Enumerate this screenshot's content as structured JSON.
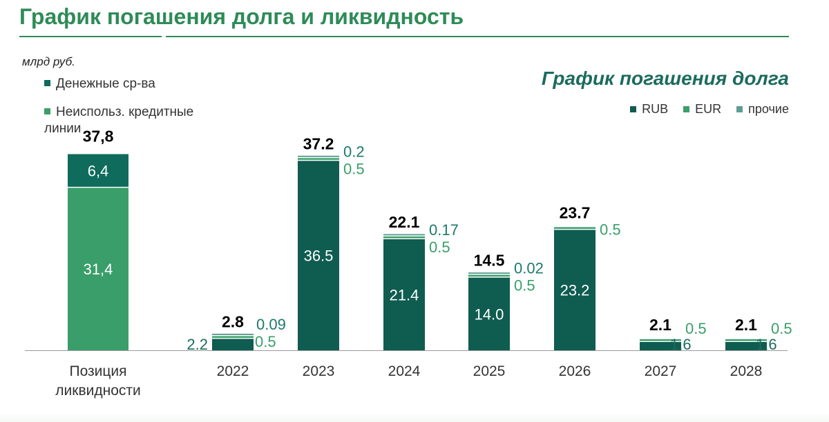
{
  "header": {
    "title": "График погашения долга и ликвидность"
  },
  "liquidity": {
    "unit": "млрд руб.",
    "legend": [
      {
        "label_line1": "Денежные ср-ва",
        "label_line2": "",
        "color": "#0f6b5c"
      },
      {
        "label_line1": "Неиспольз. кредитные",
        "label_line2": "линии",
        "color": "#3a9e6a"
      }
    ],
    "category_line1": "Позиция",
    "category_line2": "ликвидности",
    "total_label": "37,8",
    "cash_label": "6,4",
    "credit_label": "31,4",
    "cash_value": 6.4,
    "credit_value": 31.4
  },
  "debt": {
    "subtitle": "График погашения долга",
    "legend": [
      {
        "label": "RUB",
        "color": "#0f5c50"
      },
      {
        "label": "EUR",
        "color": "#3a9e6a"
      },
      {
        "label": "прочие",
        "color": "#5e9e92"
      }
    ]
  },
  "chart_data": {
    "type": "bar",
    "stacked": true,
    "categories": [
      "2022",
      "2023",
      "2024",
      "2025",
      "2026",
      "2027",
      "2028"
    ],
    "series": [
      {
        "name": "RUB",
        "values": [
          2.2,
          36.5,
          21.4,
          14.0,
          23.2,
          1.6,
          1.6
        ],
        "labels": [
          "2.2",
          "36.5",
          "21.4",
          "14.0",
          "23.2",
          "1.6",
          "1.6"
        ]
      },
      {
        "name": "EUR",
        "values": [
          0.5,
          0.5,
          0.5,
          0.5,
          0.5,
          0.5,
          0.5
        ],
        "labels": [
          "0.5",
          "0.5",
          "0.5",
          "0.5",
          "0.5",
          "0.5",
          "0.5"
        ]
      },
      {
        "name": "прочие",
        "values": [
          0.09,
          0.2,
          0.17,
          0.02,
          0,
          0,
          0
        ],
        "labels": [
          "0.09",
          "0.2",
          "0.17",
          "0.02",
          "",
          "",
          ""
        ]
      }
    ],
    "totals": [
      "2.8",
      "37.2",
      "22.1",
      "14.5",
      "23.7",
      "2.1",
      "2.1"
    ],
    "ylim": [
      0,
      38
    ],
    "xlabel": "",
    "ylabel": ""
  }
}
